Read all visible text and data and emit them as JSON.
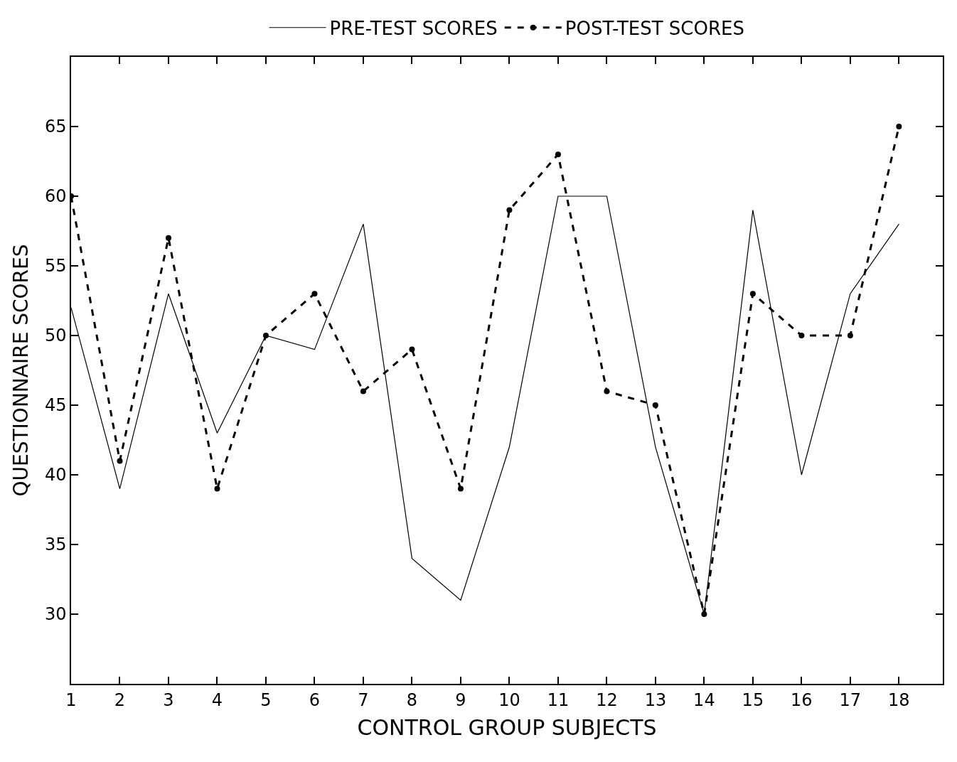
{
  "chart_data": {
    "type": "line",
    "xlabel": "CONTROL GROUP SUBJECTS",
    "ylabel": "QUESTIONNAIRE SCORES",
    "x": [
      1,
      2,
      3,
      4,
      5,
      6,
      7,
      8,
      9,
      10,
      11,
      12,
      13,
      14,
      15,
      16,
      17,
      18
    ],
    "series": [
      {
        "name": "PRE-TEST SCORES",
        "color": "#000000",
        "line_style": "solid",
        "values": [
          52,
          39,
          53,
          43,
          50,
          49,
          58,
          34,
          31,
          42,
          60,
          60,
          42,
          30,
          59,
          40,
          53,
          58
        ]
      },
      {
        "name": "POST-TEST SCORES",
        "color": "#000000",
        "line_style": "dashed",
        "marker": "circle",
        "values": [
          60,
          41,
          57,
          39,
          50,
          53,
          46,
          49,
          39,
          59,
          63,
          46,
          45,
          30,
          53,
          50,
          50,
          65
        ]
      }
    ],
    "xlim": [
      1,
      18.9
    ],
    "ylim": [
      25,
      70
    ],
    "xticks": [
      1,
      2,
      3,
      4,
      5,
      6,
      7,
      8,
      9,
      10,
      11,
      12,
      13,
      14,
      15,
      16,
      17,
      18
    ],
    "yticks": [
      30,
      35,
      40,
      45,
      50,
      55,
      60,
      65
    ],
    "legend": "top"
  }
}
